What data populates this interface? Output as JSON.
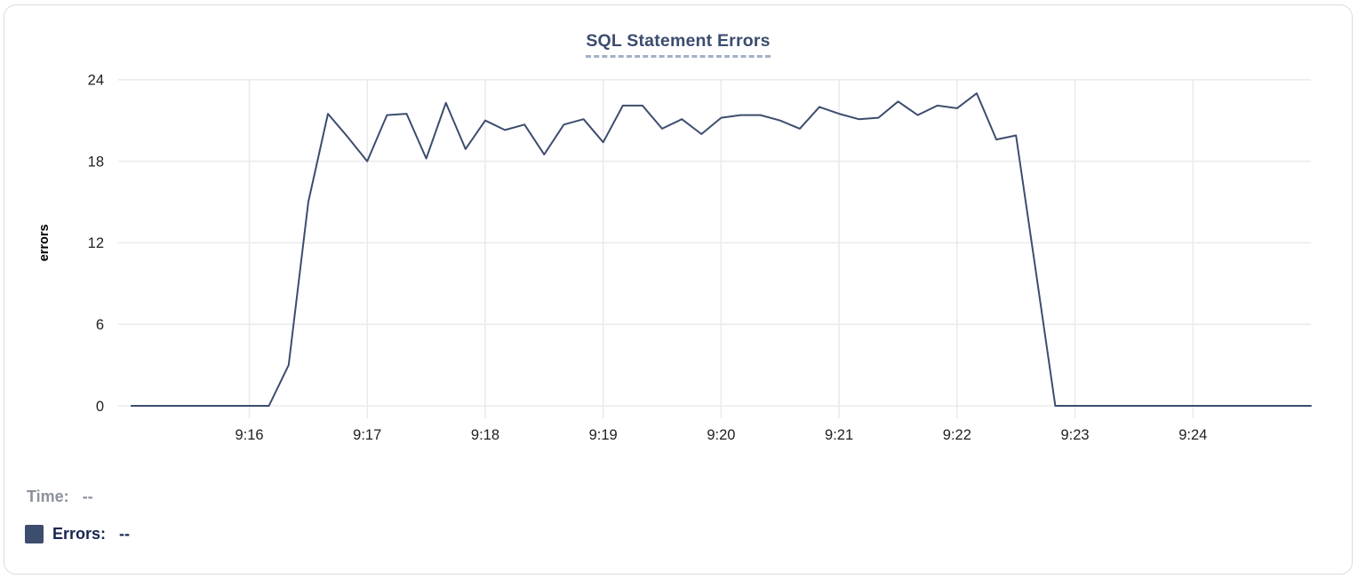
{
  "colors": {
    "series": "#3d4d6e",
    "title": "#3b4c6e",
    "grid": "#ebebee",
    "muted_text": "#8d929c"
  },
  "readout": {
    "time_label": "Time:",
    "time_value": "--",
    "series_label": "Errors:",
    "series_value": "--"
  },
  "chart_data": {
    "type": "line",
    "title": "SQL Statement Errors",
    "xlabel": "",
    "ylabel": "errors",
    "legend_entry": "Errors",
    "grid": true,
    "ylim": [
      0,
      24
    ],
    "xlim": [
      "9:15:00",
      "9:25:00"
    ],
    "yticks": [
      0,
      6,
      12,
      18,
      24
    ],
    "xticks": [
      "9:16",
      "9:17",
      "9:18",
      "9:19",
      "9:20",
      "9:21",
      "9:22",
      "9:23",
      "9:24"
    ],
    "x_time": [
      "9:15:00",
      "9:15:10",
      "9:15:20",
      "9:15:30",
      "9:15:40",
      "9:15:50",
      "9:16:00",
      "9:16:10",
      "9:16:20",
      "9:16:30",
      "9:16:40",
      "9:16:50",
      "9:17:00",
      "9:17:10",
      "9:17:20",
      "9:17:30",
      "9:17:40",
      "9:17:50",
      "9:18:00",
      "9:18:10",
      "9:18:20",
      "9:18:30",
      "9:18:40",
      "9:18:50",
      "9:19:00",
      "9:19:10",
      "9:19:20",
      "9:19:30",
      "9:19:40",
      "9:19:50",
      "9:20:00",
      "9:20:10",
      "9:20:20",
      "9:20:30",
      "9:20:40",
      "9:20:50",
      "9:21:00",
      "9:21:10",
      "9:21:20",
      "9:21:30",
      "9:21:40",
      "9:21:50",
      "9:22:00",
      "9:22:10",
      "9:22:20",
      "9:22:30",
      "9:22:40",
      "9:22:50",
      "9:23:00",
      "9:23:10",
      "9:23:20",
      "9:23:30",
      "9:23:40",
      "9:23:50",
      "9:24:00",
      "9:24:10",
      "9:24:20",
      "9:24:30",
      "9:24:40",
      "9:24:50",
      "9:25:00"
    ],
    "values": [
      0,
      0,
      0,
      0,
      0,
      0,
      0,
      0,
      3,
      15,
      21.5,
      19.8,
      18,
      21.4,
      21.5,
      18.2,
      22.3,
      18.9,
      21,
      20.3,
      20.7,
      18.5,
      20.7,
      21.1,
      19.4,
      22.1,
      22.1,
      20.4,
      21.1,
      20,
      21.2,
      21.4,
      21.4,
      21,
      20.4,
      22,
      21.5,
      21.1,
      21.2,
      22.4,
      21.4,
      22.1,
      21.9,
      23,
      19.6,
      19.9,
      10,
      0,
      0,
      0,
      0,
      0,
      0,
      0,
      0,
      0,
      0,
      0,
      0,
      0,
      0
    ]
  }
}
